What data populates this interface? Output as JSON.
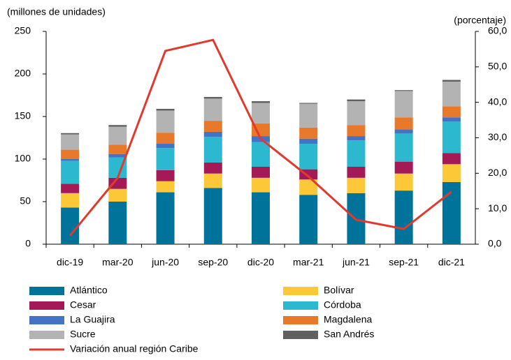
{
  "chart_data": {
    "type": "bar",
    "stacked": true,
    "y_label": "(millones de unidades)",
    "y2_label": "(porcentaje)",
    "categories": [
      "dic-19",
      "mar-20",
      "jun-20",
      "sep-20",
      "dic-20",
      "mar-21",
      "jun-21",
      "sep-21",
      "dic-21"
    ],
    "ylim": [
      0,
      250
    ],
    "yticks": [
      0,
      50,
      100,
      150,
      200,
      250
    ],
    "y2lim": [
      0,
      60
    ],
    "y2ticks": [
      {
        "value": 0,
        "label": "0,0"
      },
      {
        "value": 10,
        "label": "10,0"
      },
      {
        "value": 20,
        "label": "20,0"
      },
      {
        "value": 30,
        "label": "30,0"
      },
      {
        "value": 40,
        "label": "40,0"
      },
      {
        "value": 50,
        "label": "50,0"
      },
      {
        "value": 60,
        "label": "60,0"
      }
    ],
    "series": [
      {
        "name": "Atlántico",
        "color": "#00739b",
        "values": [
          43,
          50,
          61,
          66,
          61,
          58,
          60,
          63,
          73
        ]
      },
      {
        "name": "Bolívar",
        "color": "#fcc838",
        "values": [
          17,
          15,
          13,
          17,
          17,
          18,
          18,
          20,
          21
        ]
      },
      {
        "name": "Cesar",
        "color": "#a31a57",
        "values": [
          11,
          13,
          13,
          13,
          13,
          12,
          13,
          14,
          13
        ]
      },
      {
        "name": "Córdoba",
        "color": "#2cb9cf",
        "values": [
          27,
          24,
          26,
          30,
          29,
          30,
          31,
          33,
          37
        ]
      },
      {
        "name": "La Guajira",
        "color": "#4472c4",
        "values": [
          2,
          4,
          5,
          6,
          7,
          6,
          5,
          5,
          5
        ]
      },
      {
        "name": "Magdalena",
        "color": "#e8792a",
        "values": [
          11,
          11,
          13,
          13,
          15,
          13,
          13,
          14,
          13
        ]
      },
      {
        "name": "Sucre",
        "color": "#b3b3b3",
        "values": [
          18,
          21,
          26,
          26,
          24,
          28,
          28,
          31,
          29
        ]
      },
      {
        "name": "San Andrés",
        "color": "#606060",
        "values": [
          1.5,
          2,
          2,
          2,
          2,
          1,
          2,
          1,
          2
        ]
      },
      {
        "name": "Variación anual región Caribe",
        "color": "#e03a2e",
        "type": "line",
        "axis": "y2",
        "values": [
          2.4,
          18.7,
          54.5,
          57.6,
          29.7,
          19.1,
          6.9,
          4.3,
          14.8
        ]
      }
    ]
  }
}
